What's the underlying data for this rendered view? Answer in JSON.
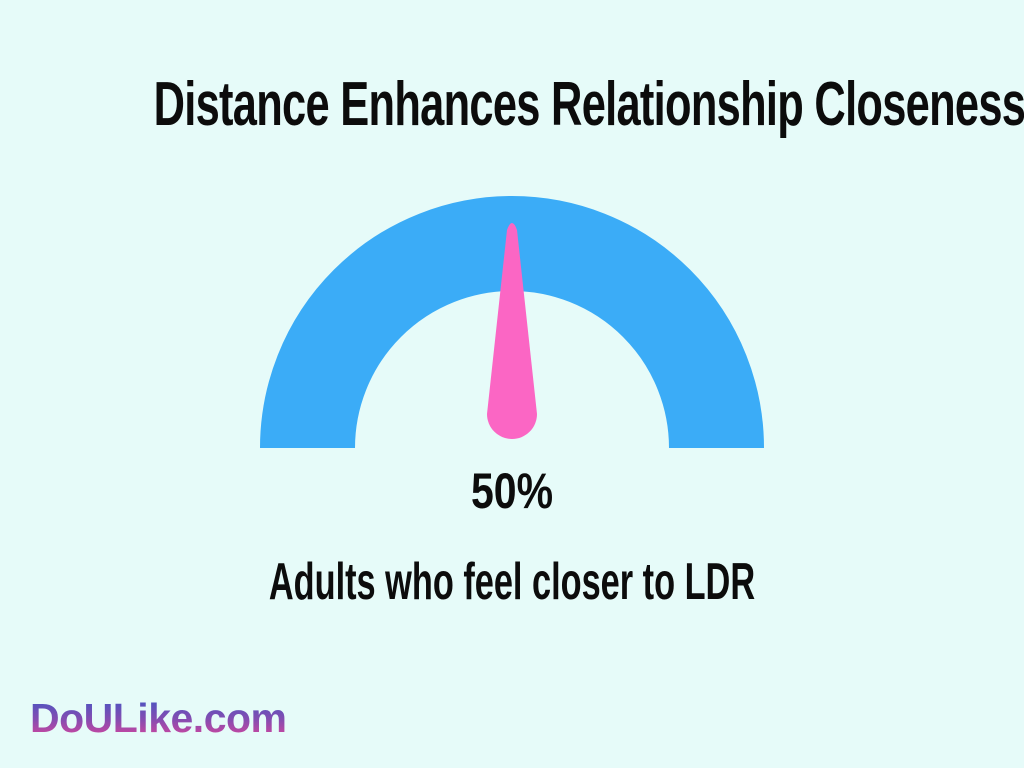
{
  "page": {
    "background_color": "#e6fbf9",
    "text_color": "#0c0c0c"
  },
  "title": "Distance Enhances Relationship Closeness",
  "chart_data": {
    "type": "gauge",
    "title": "Distance Enhances Relationship Closeness",
    "value": 50,
    "unit": "%",
    "value_label": "50%",
    "label": "Adults who feel closer to LDR",
    "min": 0,
    "max": 100,
    "legend": "none",
    "grid": false,
    "colors": {
      "arc": "#3bacf7",
      "needle": "#fb66c4",
      "background": "#e6fbf9",
      "text": "#0c0c0c"
    }
  },
  "footer": {
    "brand": "DoULike.com",
    "gradient_top": "#4156c4",
    "gradient_bottom": "#e0459a"
  }
}
